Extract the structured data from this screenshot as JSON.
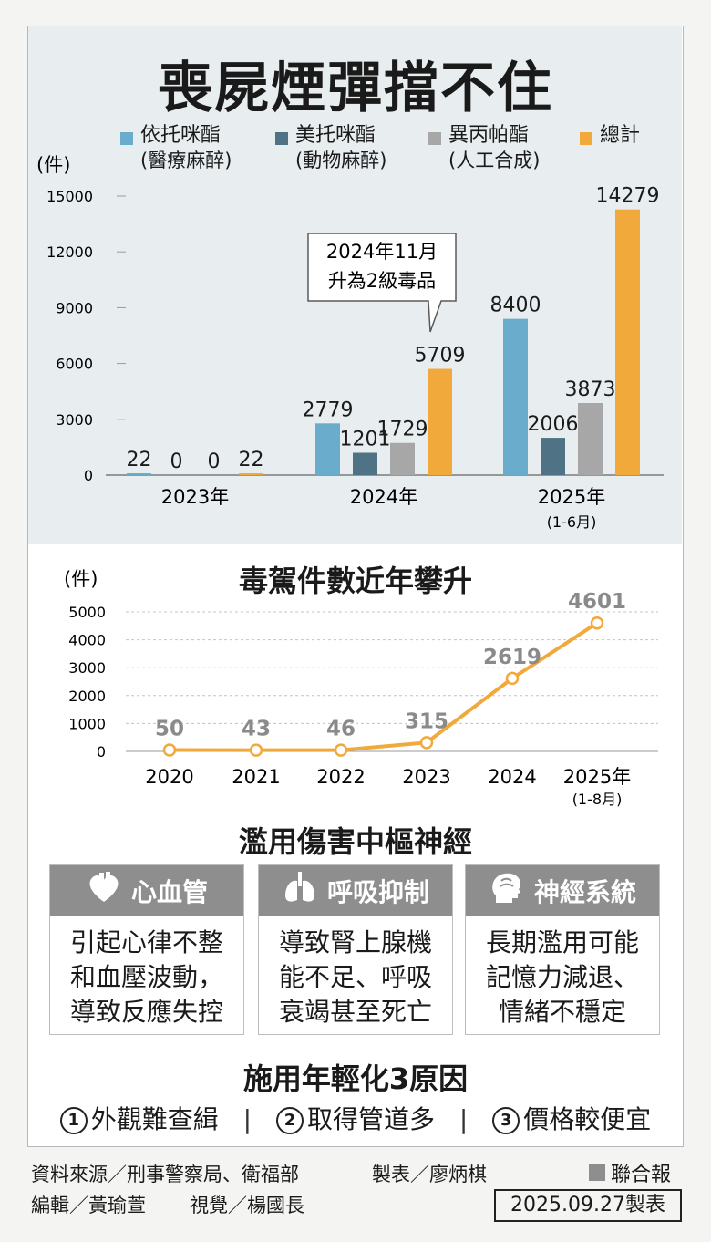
{
  "chart_data": [
    {
      "type": "bar",
      "title": "喪屍煙彈擋不住",
      "ylabel": "(件)",
      "ylim": [
        0,
        15000
      ],
      "yticks": [
        "15000",
        "12000",
        "9000",
        "6000",
        "3000",
        "0"
      ],
      "categories": [
        "2023年",
        "2024年",
        "2025年"
      ],
      "category_notes": [
        "",
        "",
        "(1-6月)"
      ],
      "series": [
        {
          "name": "依托咪酯",
          "note": "(醫療麻醉)",
          "color": "#6aaccb",
          "values": [
            22,
            2779,
            8400
          ]
        },
        {
          "name": "美托咪酯",
          "note": "(動物麻醉)",
          "color": "#4f7384",
          "values": [
            0,
            1201,
            2006
          ]
        },
        {
          "name": "異丙帕酯",
          "note": "(人工合成)",
          "color": "#a7a7a7",
          "values": [
            0,
            1729,
            3873
          ]
        },
        {
          "name": "總計",
          "note": "",
          "color": "#f2a93b",
          "values": [
            22,
            5709,
            14279
          ]
        }
      ],
      "annotation": {
        "line1": "2024年11月",
        "line2": "升為2級毒品"
      }
    },
    {
      "type": "line",
      "title": "毒駕件數近年攀升",
      "ylabel": "(件)",
      "ylim": [
        0,
        5000
      ],
      "yticks": [
        "5000",
        "4000",
        "3000",
        "2000",
        "1000",
        "0"
      ],
      "categories": [
        "2020",
        "2021",
        "2022",
        "2023",
        "2024",
        "2025年"
      ],
      "category_notes": [
        "",
        "",
        "",
        "",
        "",
        "(1-8月)"
      ],
      "values": [
        50,
        43,
        46,
        315,
        2619,
        4601
      ],
      "color": "#f2a93b",
      "grid": true
    }
  ],
  "section3": {
    "title": "濫用傷害中樞神經",
    "cards": [
      {
        "title": "心血管",
        "icon": "heart-icon",
        "lines": [
          "引起心律不整",
          "和血壓波動，",
          "導致反應失控"
        ]
      },
      {
        "title": "呼吸抑制",
        "icon": "lungs-icon",
        "lines": [
          "導致腎上腺機",
          "能不足、呼吸",
          "衰竭甚至死亡"
        ]
      },
      {
        "title": "神經系統",
        "icon": "brain-icon",
        "lines": [
          "長期濫用可能",
          "記憶力減退、",
          "情緒不穩定"
        ]
      }
    ]
  },
  "section4": {
    "title": "施用年輕化3原因",
    "reasons": [
      {
        "num": "1",
        "text": "外觀難查緝"
      },
      {
        "num": "2",
        "text": "取得管道多"
      },
      {
        "num": "3",
        "text": "價格較便宜"
      }
    ],
    "separator": "|"
  },
  "footer": {
    "source": "資料來源／刑事警察局、衛福部",
    "maker": "製表／廖炳棋",
    "editor": "編輯／黃瑜萱",
    "visual": "視覺／楊國長",
    "brand": "聯合報",
    "date": "2025.09.27製表"
  }
}
